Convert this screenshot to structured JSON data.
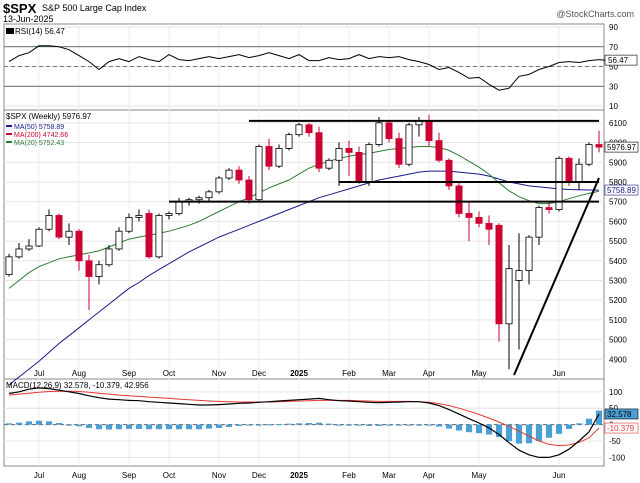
{
  "header": {
    "symbol": "$SPX",
    "name": "S&P 500 Large Cap Index",
    "date": "13-Jun-2025",
    "credit": "@StockCharts.com"
  },
  "colors": {
    "up": "#ffffff",
    "down": "#cc0033",
    "ma50": "#1a1a8c",
    "ma200": "#cc0033",
    "ma20": "#2e7d32",
    "rsi": "#000000",
    "macd": "#000000",
    "signal": "#e53935",
    "hist": "#4a9fd4",
    "trend": "#000000"
  },
  "chart_data": [
    {
      "type": "line",
      "panel": "rsi",
      "label": "RSI(14) 56.47",
      "last": "56.47",
      "ylim": [
        10,
        90
      ],
      "yticks": [
        "90",
        "70",
        "50",
        "30",
        "10"
      ],
      "guides": [
        70,
        30
      ],
      "values": [
        55,
        61,
        64,
        71,
        71,
        70,
        67,
        61,
        55,
        47,
        55,
        58,
        55,
        60,
        57,
        55,
        62,
        57,
        56,
        58,
        60,
        58,
        60,
        62,
        59,
        61,
        64,
        61,
        58,
        62,
        56,
        56,
        59,
        57,
        58,
        62,
        58,
        60,
        59,
        60,
        57,
        55,
        52,
        47,
        49,
        44,
        38,
        39,
        32,
        26,
        28,
        40,
        42,
        47,
        50,
        54,
        55,
        54,
        56,
        57,
        56,
        56.47
      ]
    },
    {
      "type": "candlestick",
      "panel": "price",
      "label": "$SPX (Weekly) 5976.97",
      "last": "5976.97",
      "ylim": [
        4800,
        6150
      ],
      "yticks": [
        "6100",
        "6000",
        "5900",
        "5800",
        "5700",
        "5600",
        "5500",
        "5400",
        "5300",
        "5200",
        "5100",
        "5000",
        "4900"
      ],
      "xlabels": [
        "Jul",
        "Aug",
        "Sep",
        "Oct",
        "Nov",
        "Dec",
        "2025",
        "Feb",
        "Mar",
        "Apr",
        "May",
        "Jun"
      ],
      "ma_legend": [
        {
          "label": "MA(50) 5758.89",
          "value": "5758.89",
          "color": "#1a1a8c"
        },
        {
          "label": "MA(200) 4742.66",
          "value": "4742.66",
          "color": "#cc0033"
        },
        {
          "label": "MA(20) 5752.43",
          "value": "5752.43",
          "color": "#2e7d32"
        }
      ],
      "ohlc": [
        [
          5330,
          5435,
          5320,
          5420
        ],
        [
          5420,
          5490,
          5410,
          5460
        ],
        [
          5460,
          5510,
          5450,
          5475
        ],
        [
          5475,
          5570,
          5470,
          5560
        ],
        [
          5560,
          5660,
          5550,
          5630
        ],
        [
          5630,
          5640,
          5510,
          5520
        ],
        [
          5520,
          5590,
          5480,
          5550
        ],
        [
          5550,
          5560,
          5350,
          5400
        ],
        [
          5400,
          5430,
          5150,
          5320
        ],
        [
          5320,
          5400,
          5280,
          5380
        ],
        [
          5380,
          5480,
          5370,
          5460
        ],
        [
          5460,
          5570,
          5450,
          5550
        ],
        [
          5550,
          5640,
          5540,
          5620
        ],
        [
          5620,
          5660,
          5600,
          5630
        ],
        [
          5640,
          5660,
          5410,
          5420
        ],
        [
          5420,
          5640,
          5410,
          5630
        ],
        [
          5630,
          5650,
          5610,
          5640
        ],
        [
          5640,
          5720,
          5630,
          5700
        ],
        [
          5700,
          5720,
          5680,
          5710
        ],
        [
          5710,
          5730,
          5690,
          5720
        ],
        [
          5720,
          5760,
          5700,
          5750
        ],
        [
          5750,
          5830,
          5740,
          5820
        ],
        [
          5820,
          5870,
          5810,
          5860
        ],
        [
          5860,
          5880,
          5790,
          5810
        ],
        [
          5810,
          5830,
          5690,
          5710
        ],
        [
          5710,
          5990,
          5700,
          5980
        ],
        [
          5980,
          6020,
          5860,
          5880
        ],
        [
          5880,
          5990,
          5870,
          5970
        ],
        [
          5970,
          6050,
          5960,
          6040
        ],
        [
          6040,
          6100,
          6030,
          6090
        ],
        [
          6090,
          6100,
          6030,
          6050
        ],
        [
          6050,
          6080,
          5850,
          5870
        ],
        [
          5870,
          5920,
          5860,
          5910
        ],
        [
          5910,
          6000,
          5780,
          5970
        ],
        [
          5970,
          6010,
          5830,
          5950
        ],
        [
          5950,
          5980,
          5790,
          5800
        ],
        [
          5800,
          6000,
          5780,
          5990
        ],
        [
          5990,
          6130,
          5980,
          6100
        ],
        [
          6100,
          6110,
          6000,
          6020
        ],
        [
          6020,
          6050,
          5870,
          5890
        ],
        [
          5890,
          6100,
          5880,
          6090
        ],
        [
          6090,
          6130,
          6030,
          6110
        ],
        [
          6110,
          6140,
          5980,
          6010
        ],
        [
          6010,
          6050,
          5900,
          5910
        ],
        [
          5910,
          5920,
          5760,
          5780
        ],
        [
          5780,
          5800,
          5620,
          5640
        ],
        [
          5640,
          5700,
          5500,
          5620
        ],
        [
          5620,
          5650,
          5570,
          5590
        ],
        [
          5590,
          5630,
          5480,
          5560
        ],
        [
          5580,
          5590,
          4990,
          5080
        ],
        [
          5080,
          5480,
          4850,
          5360
        ],
        [
          5300,
          5540,
          4950,
          5350
        ],
        [
          5350,
          5530,
          5280,
          5520
        ],
        [
          5520,
          5680,
          5480,
          5670
        ],
        [
          5670,
          5700,
          5640,
          5660
        ],
        [
          5660,
          5930,
          5650,
          5920
        ],
        [
          5920,
          5930,
          5780,
          5800
        ],
        [
          5800,
          5920,
          5760,
          5890
        ],
        [
          5890,
          6000,
          5880,
          5990
        ],
        [
          5990,
          6060,
          5950,
          5976.97
        ]
      ],
      "ma50": [
        4770,
        4810,
        4850,
        4890,
        4935,
        4980,
        5020,
        5060,
        5100,
        5140,
        5180,
        5220,
        5260,
        5290,
        5325,
        5355,
        5385,
        5415,
        5445,
        5470,
        5495,
        5520,
        5540,
        5560,
        5580,
        5600,
        5620,
        5640,
        5660,
        5680,
        5700,
        5720,
        5735,
        5750,
        5765,
        5780,
        5795,
        5810,
        5820,
        5830,
        5840,
        5850,
        5855,
        5855,
        5855,
        5850,
        5845,
        5840,
        5830,
        5815,
        5800,
        5790,
        5780,
        5775,
        5770,
        5765,
        5762,
        5760,
        5759,
        5758.89
      ],
      "ma20": [
        5260,
        5300,
        5340,
        5370,
        5390,
        5410,
        5420,
        5430,
        5440,
        5450,
        5470,
        5490,
        5510,
        5520,
        5530,
        5540,
        5550,
        5565,
        5580,
        5600,
        5625,
        5650,
        5675,
        5700,
        5720,
        5745,
        5770,
        5790,
        5810,
        5840,
        5870,
        5890,
        5905,
        5920,
        5930,
        5940,
        5945,
        5955,
        5965,
        5970,
        5975,
        5980,
        5980,
        5975,
        5960,
        5935,
        5905,
        5875,
        5840,
        5795,
        5755,
        5725,
        5705,
        5690,
        5690,
        5700,
        5715,
        5730,
        5742,
        5752.43
      ],
      "hlines": [
        {
          "y": 6110,
          "x0": 24,
          "x1": 59
        },
        {
          "y": 5800,
          "x0": 33,
          "x1": 59
        },
        {
          "y": 5700,
          "x0": 16,
          "x1": 59
        }
      ],
      "trendline": {
        "x0": 50.5,
        "y0": 4820,
        "x1": 59,
        "y1": 5820
      }
    },
    {
      "type": "bar",
      "panel": "macd",
      "label": "MACD(12,26,9) 32.578, -10.379, 42.956",
      "values_text": [
        "32.578",
        "-10.379",
        "42.956"
      ],
      "ylim": [
        -120,
        130
      ],
      "yticks": [
        "100",
        "50",
        "0",
        "-50",
        "-100"
      ],
      "xlabels": [
        "Jul",
        "Aug",
        "Sep",
        "Oct",
        "Nov",
        "Dec",
        "2025",
        "Feb",
        "Mar",
        "Apr",
        "May",
        "Jun"
      ],
      "macd": [
        95,
        100,
        108,
        112,
        110,
        105,
        100,
        95,
        88,
        82,
        78,
        76,
        74,
        73,
        70,
        68,
        66,
        64,
        62,
        60,
        60,
        61,
        63,
        65,
        66,
        68,
        70,
        72,
        74,
        76,
        78,
        80,
        76,
        73,
        72,
        70,
        68,
        67,
        68,
        69,
        70,
        70,
        66,
        58,
        46,
        32,
        18,
        5,
        -10,
        -30,
        -55,
        -78,
        -92,
        -100,
        -100,
        -92,
        -75,
        -50,
        -22,
        32.578
      ],
      "signal": [
        90,
        93,
        96,
        99,
        101,
        102,
        102,
        101,
        99,
        96,
        93,
        90,
        88,
        86,
        84,
        82,
        80,
        78,
        76,
        74,
        72,
        71,
        70,
        69,
        69,
        69,
        69,
        70,
        71,
        72,
        73,
        74,
        74,
        74,
        74,
        73,
        72,
        71,
        71,
        71,
        71,
        70,
        68,
        64,
        58,
        50,
        41,
        31,
        20,
        8,
        -5,
        -20,
        -35,
        -50,
        -60,
        -64,
        -62,
        -54,
        -40,
        -10.379
      ],
      "histogram": [
        4,
        6,
        10,
        12,
        10,
        5,
        0,
        -5,
        -10,
        -14,
        -15,
        -14,
        -13,
        -13,
        -14,
        -14,
        -14,
        -14,
        -14,
        -14,
        -12,
        -10,
        -7,
        -4,
        -3,
        -1,
        1,
        2,
        3,
        4,
        5,
        6,
        3,
        -1,
        -2,
        -3,
        -4,
        -4,
        -3,
        -2,
        -1,
        0,
        -2,
        -6,
        -12,
        -18,
        -23,
        -26,
        -30,
        -38,
        -50,
        -58,
        -57,
        -50,
        -40,
        -28,
        -13,
        4,
        18,
        42.956
      ]
    }
  ]
}
